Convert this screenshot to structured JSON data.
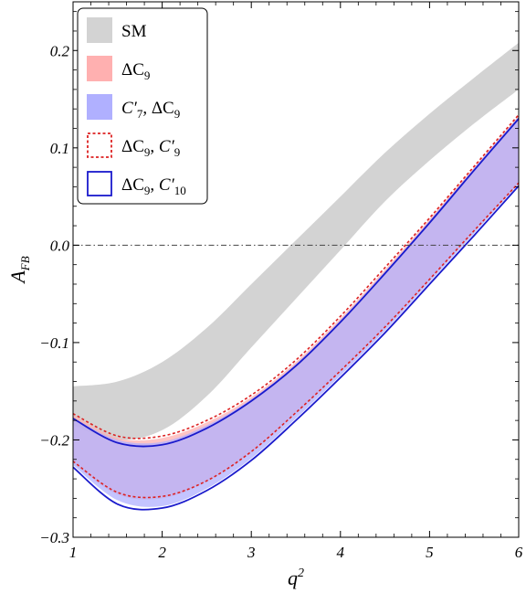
{
  "chart_data": {
    "type": "area",
    "xlabel": "q",
    "xlabel_sup": "2",
    "ylabel": "A",
    "ylabel_sub": "FB",
    "xlim": [
      1,
      6
    ],
    "ylim": [
      -0.3,
      0.25
    ],
    "x_ticks": [
      1,
      2,
      3,
      4,
      5,
      6
    ],
    "x_tick_labels": [
      "1",
      "2",
      "3",
      "4",
      "5",
      "6"
    ],
    "y_ticks": [
      -0.3,
      -0.2,
      -0.1,
      0.0,
      0.1,
      0.2
    ],
    "y_tick_labels": [
      "−0.3",
      "−0.2",
      "−0.1",
      "0.0",
      "0.1",
      "0.2"
    ],
    "zero_line": true,
    "grid": false,
    "legend_position": "top-left",
    "x": [
      1.0,
      1.5,
      2.0,
      2.5,
      3.0,
      3.5,
      4.0,
      4.5,
      5.0,
      5.5,
      6.0
    ],
    "series": [
      {
        "name": "SM",
        "style": "fill",
        "color": "#d3d3d3",
        "upper": [
          -0.145,
          -0.14,
          -0.12,
          -0.085,
          -0.04,
          0.005,
          0.05,
          0.095,
          0.135,
          0.172,
          0.208
        ],
        "lower": [
          -0.185,
          -0.2,
          -0.19,
          -0.155,
          -0.105,
          -0.055,
          -0.005,
          0.045,
          0.087,
          0.125,
          0.16
        ]
      },
      {
        "name": "ΔC",
        "name_sub": "9",
        "style": "fill",
        "color": "#ffb0b0",
        "upper": [
          -0.174,
          -0.198,
          -0.198,
          -0.182,
          -0.156,
          -0.12,
          -0.075,
          -0.025,
          0.027,
          0.08,
          0.133
        ],
        "lower": [
          -0.224,
          -0.256,
          -0.26,
          -0.243,
          -0.213,
          -0.173,
          -0.13,
          -0.085,
          -0.036,
          0.014,
          0.063
        ]
      },
      {
        "name": "C′",
        "name_sub": "7",
        "name_suffix": ", ΔC",
        "name_suffix_sub": "9",
        "style": "fill",
        "color": "#b0b0ff",
        "upper": [
          -0.177,
          -0.2,
          -0.202,
          -0.185,
          -0.158,
          -0.122,
          -0.077,
          -0.027,
          0.025,
          0.079,
          0.132
        ],
        "lower": [
          -0.226,
          -0.262,
          -0.268,
          -0.25,
          -0.219,
          -0.178,
          -0.134,
          -0.088,
          -0.038,
          0.012,
          0.063
        ]
      },
      {
        "name": "ΔC",
        "name_sub": "9",
        "name_suffix": ", C′",
        "name_suffix_sub": "9",
        "style": "dashed-outline",
        "color": "#dd2222",
        "upper": [
          -0.173,
          -0.196,
          -0.196,
          -0.18,
          -0.154,
          -0.118,
          -0.073,
          -0.023,
          0.028,
          0.081,
          0.134
        ],
        "lower": [
          -0.222,
          -0.254,
          -0.258,
          -0.242,
          -0.212,
          -0.172,
          -0.129,
          -0.084,
          -0.035,
          0.015,
          0.064
        ]
      },
      {
        "name": "ΔC",
        "name_sub": "9",
        "name_suffix": ", C′",
        "name_suffix_sub": "10",
        "style": "outline",
        "color": "#1a1acc",
        "upper": [
          -0.178,
          -0.203,
          -0.205,
          -0.188,
          -0.16,
          -0.124,
          -0.079,
          -0.029,
          0.023,
          0.077,
          0.13
        ],
        "lower": [
          -0.228,
          -0.266,
          -0.27,
          -0.252,
          -0.221,
          -0.18,
          -0.136,
          -0.09,
          -0.04,
          0.01,
          0.061
        ]
      }
    ]
  }
}
